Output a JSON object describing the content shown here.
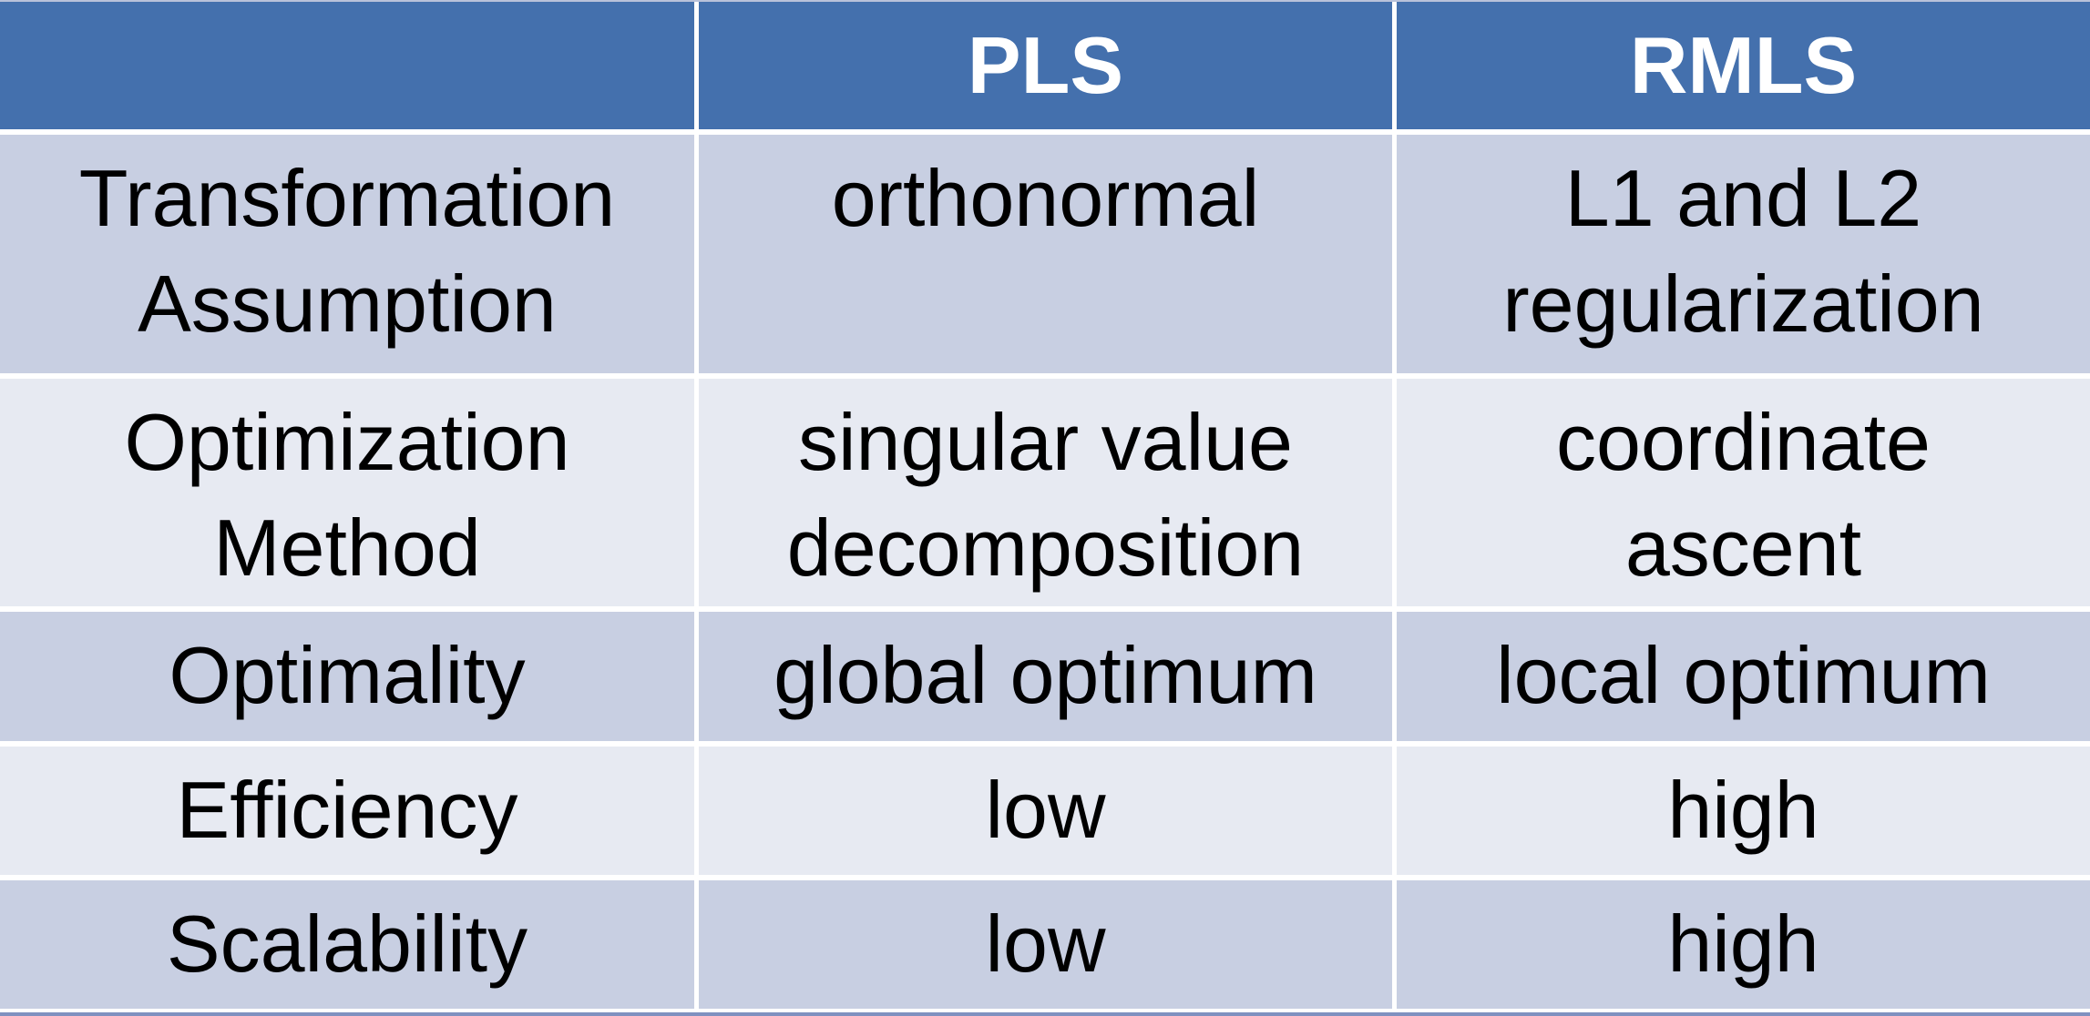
{
  "colors": {
    "header_bg": "#4470ad",
    "header_text": "#ffffff",
    "band_dark": "#c8cfe2",
    "band_light": "#e7eaf2",
    "body_text": "#000000",
    "top_border": "#b9c2da",
    "bottom_border": "#8091c0",
    "divider": "#ffffff"
  },
  "table": {
    "columns": [
      "",
      "PLS",
      "RMLS"
    ],
    "rows": [
      {
        "label": "Transformation Assumption",
        "pls": "orthonormal",
        "rmls": "L1 and L2 regularization"
      },
      {
        "label": "Optimization Method",
        "pls": "singular value decomposition",
        "rmls": "coordinate ascent"
      },
      {
        "label": "Optimality",
        "pls": "global optimum",
        "rmls": "local optimum"
      },
      {
        "label": "Efficiency",
        "pls": "low",
        "rmls": "high"
      },
      {
        "label": "Scalability",
        "pls": "low",
        "rmls": "high"
      }
    ]
  }
}
